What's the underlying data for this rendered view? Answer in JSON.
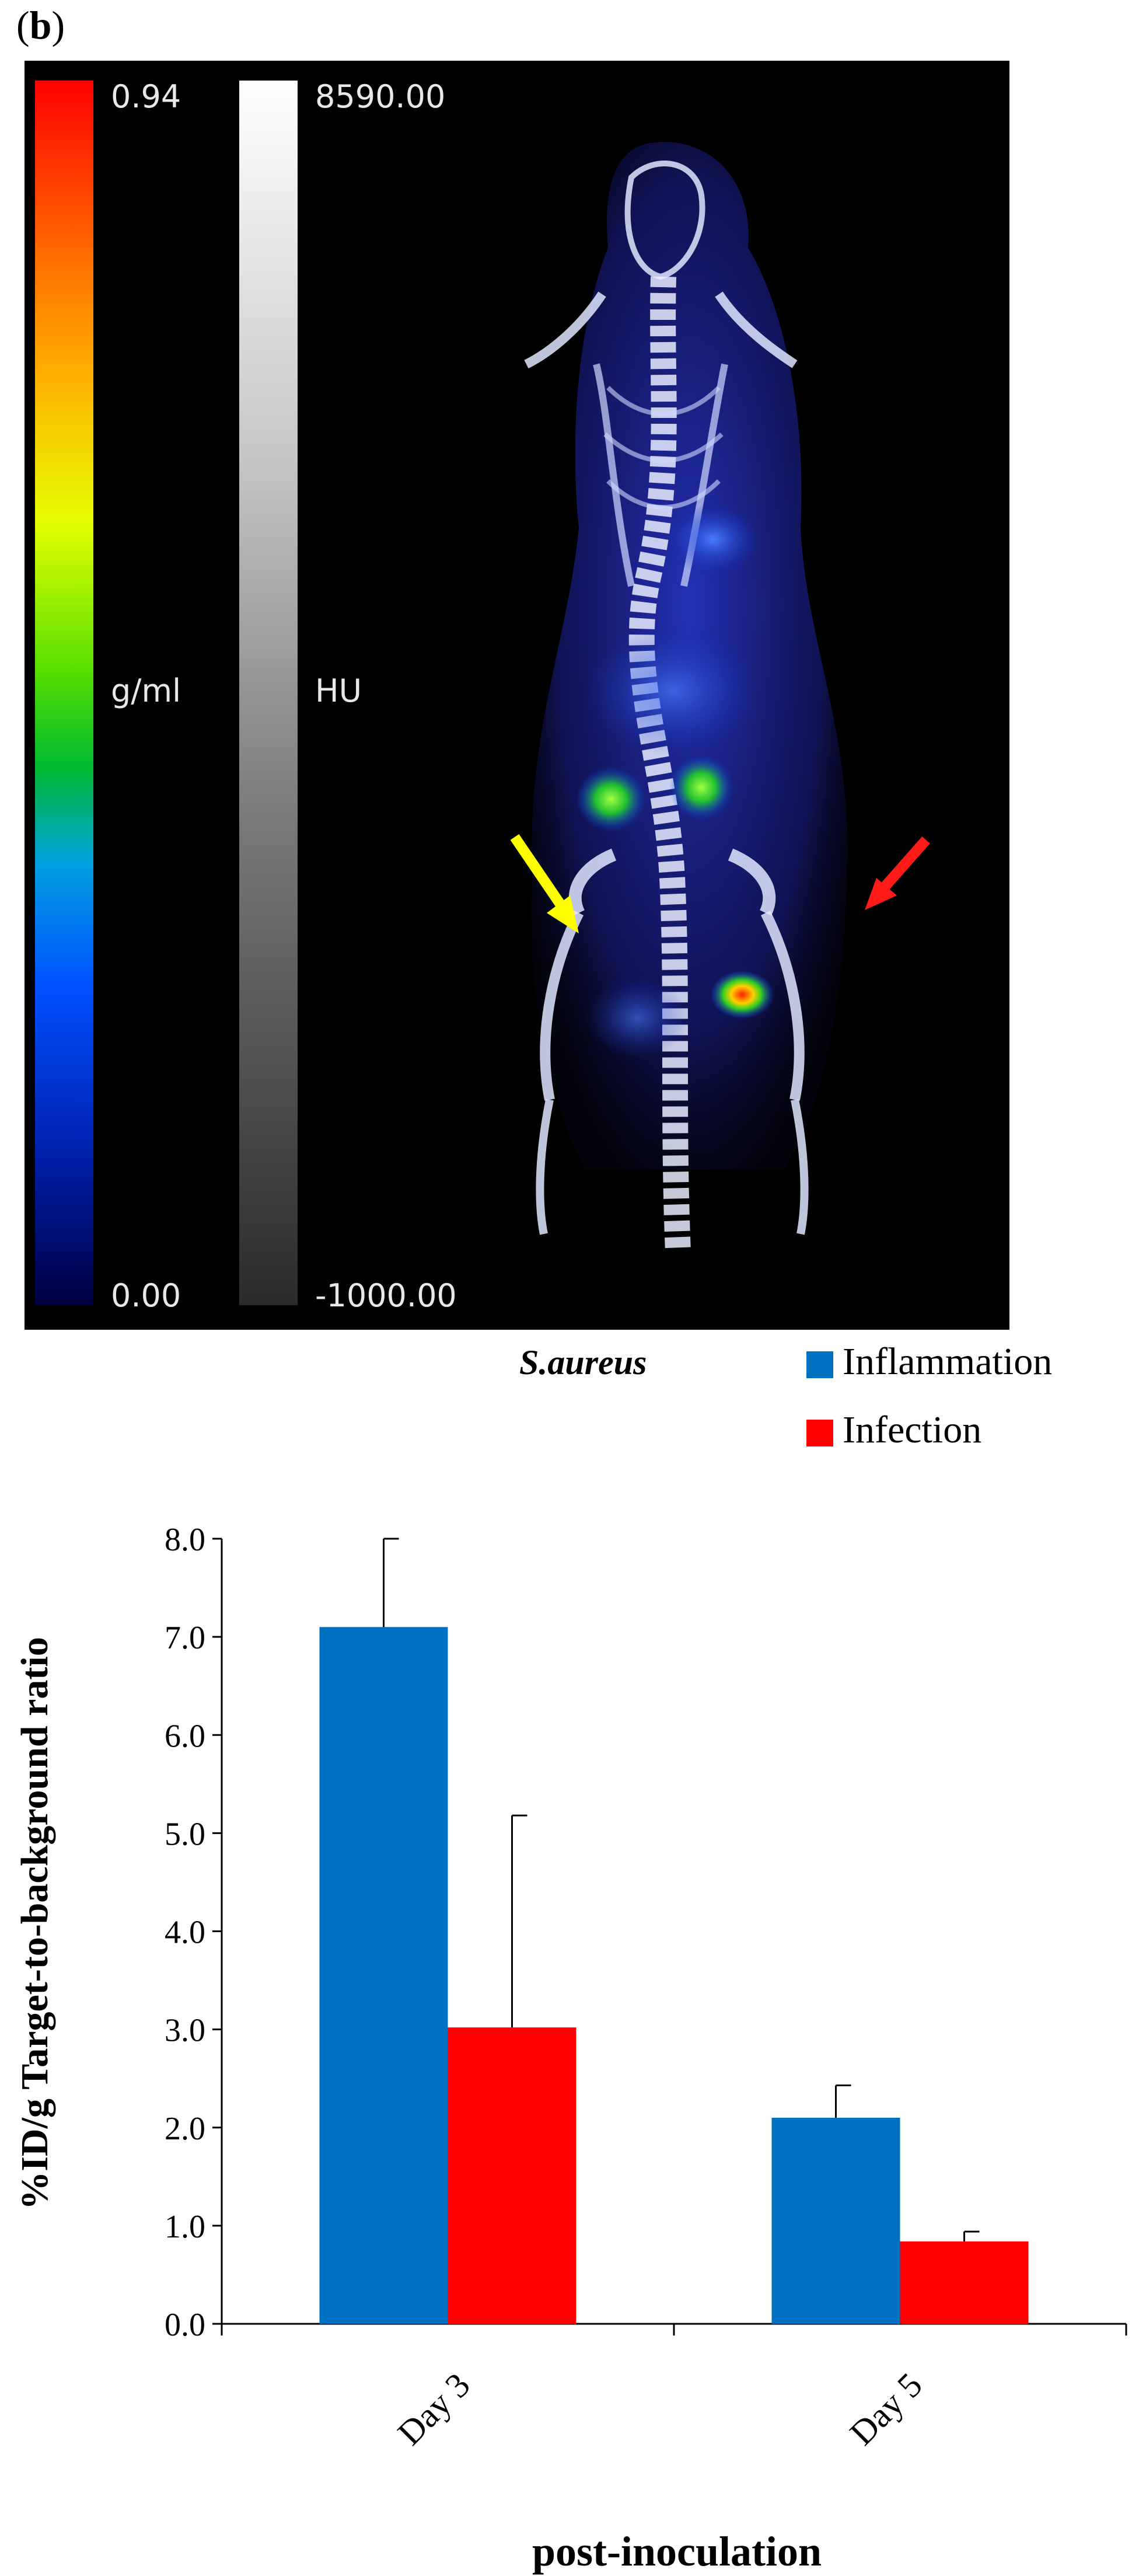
{
  "panel_label": {
    "open": "(",
    "letter": "b",
    "close": ")"
  },
  "image": {
    "colorbar_conc": {
      "max": "0.94",
      "unit": "g/ml",
      "min": "0.00"
    },
    "colorbar_hu": {
      "max": "8590.00",
      "unit": "HU",
      "min": "-1000.00"
    },
    "arrows": [
      {
        "color": "#ffff00",
        "marks": "inflammation-site"
      },
      {
        "color": "#ff1a1a",
        "marks": "infection-site"
      }
    ]
  },
  "species": "S.aureus",
  "colors": {
    "inflammation": "#0070c0",
    "infection": "#ff0000"
  },
  "chart_data": {
    "type": "bar",
    "categories": [
      "Day 3",
      "Day 5"
    ],
    "series": [
      {
        "name": "Inflammation",
        "values": [
          7.1,
          2.1
        ],
        "error": [
          0.9,
          0.33
        ],
        "color": "#0070c0"
      },
      {
        "name": "Infection",
        "values": [
          3.02,
          0.84
        ],
        "error": [
          2.16,
          0.1
        ],
        "color": "#ff0000"
      }
    ],
    "xlabel": "post-inoculation",
    "ylabel": "%ID/g Target-to-background ratio",
    "ylim": [
      0,
      8
    ],
    "yticks": [
      "0.0",
      "1.0",
      "2.0",
      "3.0",
      "4.0",
      "5.0",
      "6.0",
      "7.0",
      "8.0"
    ],
    "legend_position": "top-right",
    "grid": false
  }
}
